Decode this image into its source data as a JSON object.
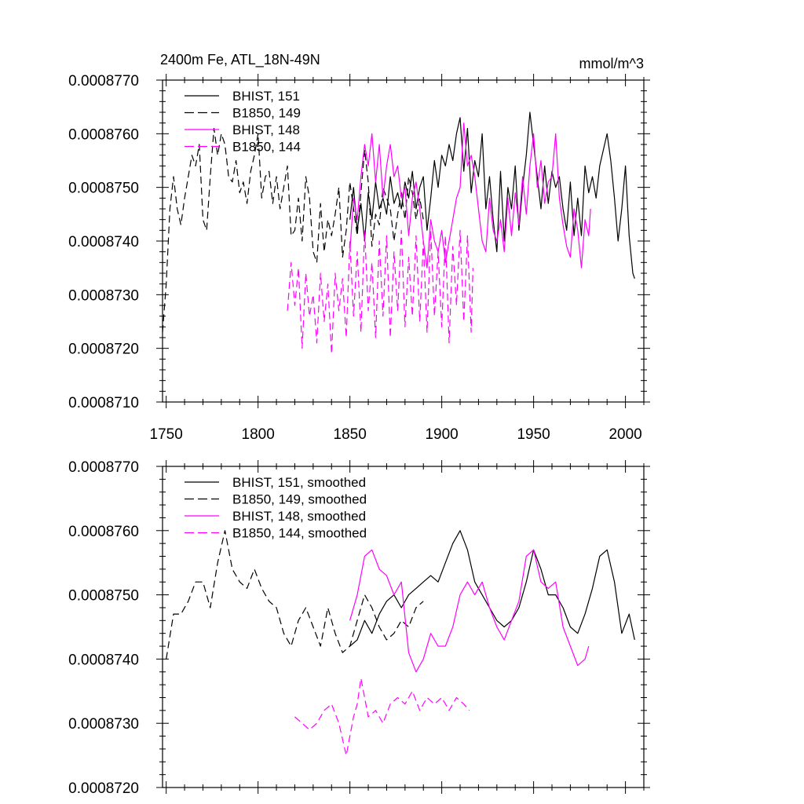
{
  "chart_data": [
    {
      "type": "line",
      "title_left": "2400m Fe, ATL_18N-49N",
      "title_right": "mmol/m^3",
      "xlim": [
        1748,
        2010
      ],
      "ylim": [
        0.000871,
        0.000877
      ],
      "xticks": [
        1750,
        1800,
        1850,
        1900,
        1950,
        2000
      ],
      "xticklabels": [
        "1750",
        "1800",
        "1850",
        "1900",
        "1950",
        "2000"
      ],
      "yticks": [
        0.000871,
        0.000872,
        0.000873,
        0.000874,
        0.000875,
        0.000876,
        0.000877
      ],
      "yticklabels": [
        "0.0008710",
        "0.0008720",
        "0.0008730",
        "0.0008740",
        "0.0008750",
        "0.0008760",
        "0.0008770"
      ],
      "grid": false,
      "legend_position": "top-left",
      "series": [
        {
          "name": "BHIST, 151",
          "color": "#000000",
          "dash": "solid",
          "x": [
            1850,
            1852,
            1854,
            1856,
            1858,
            1860,
            1862,
            1864,
            1866,
            1868,
            1870,
            1872,
            1874,
            1876,
            1878,
            1880,
            1882,
            1884,
            1886,
            1888,
            1890,
            1892,
            1894,
            1896,
            1898,
            1900,
            1902,
            1904,
            1906,
            1908,
            1910,
            1912,
            1914,
            1916,
            1918,
            1920,
            1922,
            1924,
            1926,
            1928,
            1930,
            1932,
            1934,
            1936,
            1938,
            1940,
            1942,
            1944,
            1946,
            1948,
            1950,
            1952,
            1954,
            1956,
            1958,
            1960,
            1962,
            1964,
            1966,
            1968,
            1970,
            1972,
            1974,
            1976,
            1978,
            1980,
            1982,
            1984,
            1986,
            1988,
            1990,
            1992,
            1994,
            1996,
            1998,
            2000,
            2002,
            2004,
            2005
          ],
          "y": [
            0.0008744,
            0.000875,
            0.0008742,
            0.0008747,
            0.000874,
            0.0008749,
            0.0008744,
            0.0008751,
            0.0008746,
            0.0008748,
            0.0008745,
            0.0008752,
            0.0008747,
            0.0008749,
            0.0008746,
            0.0008751,
            0.0008748,
            0.0008753,
            0.0008746,
            0.000875,
            0.0008752,
            0.0008742,
            0.0008748,
            0.0008755,
            0.000875,
            0.0008756,
            0.0008754,
            0.0008758,
            0.0008755,
            0.000876,
            0.0008763,
            0.0008753,
            0.0008761,
            0.0008749,
            0.0008755,
            0.0008752,
            0.000876,
            0.0008746,
            0.0008752,
            0.0008744,
            0.0008738,
            0.0008753,
            0.000874,
            0.000875,
            0.0008746,
            0.0008754,
            0.0008742,
            0.000875,
            0.0008756,
            0.0008764,
            0.0008758,
            0.0008752,
            0.0008746,
            0.0008754,
            0.0008747,
            0.0008753,
            0.000875,
            0.0008752,
            0.0008746,
            0.0008742,
            0.0008751,
            0.0008741,
            0.0008748,
            0.0008741,
            0.0008754,
            0.0008749,
            0.0008752,
            0.0008748,
            0.0008754,
            0.0008757,
            0.000876,
            0.0008755,
            0.0008748,
            0.000874,
            0.0008746,
            0.0008754,
            0.0008741,
            0.0008734,
            0.0008733
          ]
        },
        {
          "name": "B1850, 149",
          "color": "#000000",
          "dash": "dash",
          "x": [
            1748,
            1750,
            1752,
            1754,
            1756,
            1758,
            1760,
            1762,
            1764,
            1766,
            1768,
            1770,
            1772,
            1774,
            1776,
            1778,
            1780,
            1782,
            1784,
            1786,
            1788,
            1790,
            1792,
            1794,
            1796,
            1798,
            1800,
            1802,
            1804,
            1806,
            1808,
            1810,
            1812,
            1814,
            1816,
            1818,
            1820,
            1822,
            1824,
            1826,
            1828,
            1830,
            1832,
            1834,
            1836,
            1838,
            1840,
            1842,
            1844,
            1846,
            1848,
            1850,
            1852,
            1854,
            1856,
            1858,
            1860,
            1862,
            1864,
            1866,
            1868,
            1870,
            1872,
            1874,
            1876,
            1878,
            1880,
            1882,
            1884,
            1886,
            1888,
            1890
          ],
          "y": [
            0.0008723,
            0.0008732,
            0.0008746,
            0.0008752,
            0.0008746,
            0.0008743,
            0.0008748,
            0.0008752,
            0.0008756,
            0.0008754,
            0.0008758,
            0.0008744,
            0.0008742,
            0.0008752,
            0.0008761,
            0.0008756,
            0.000876,
            0.0008758,
            0.0008752,
            0.0008751,
            0.0008755,
            0.0008749,
            0.0008751,
            0.0008747,
            0.0008753,
            0.0008756,
            0.000876,
            0.0008748,
            0.0008752,
            0.0008753,
            0.0008747,
            0.0008752,
            0.0008746,
            0.000875,
            0.0008754,
            0.0008741,
            0.0008742,
            0.0008748,
            0.000874,
            0.0008752,
            0.0008748,
            0.0008738,
            0.0008736,
            0.0008747,
            0.0008738,
            0.0008744,
            0.0008741,
            0.0008745,
            0.000875,
            0.0008737,
            0.0008742,
            0.0008751,
            0.0008746,
            0.0008741,
            0.0008749,
            0.0008757,
            0.0008751,
            0.0008739,
            0.0008745,
            0.0008743,
            0.000875,
            0.0008748,
            0.0008746,
            0.000874,
            0.0008745,
            0.0008749,
            0.0008744,
            0.0008752,
            0.0008749,
            0.0008744,
            0.0008748,
            0.0008744
          ]
        },
        {
          "name": "BHIST, 148",
          "color": "#ff00ff",
          "dash": "solid",
          "x": [
            1850,
            1852,
            1854,
            1856,
            1858,
            1860,
            1862,
            1864,
            1866,
            1868,
            1870,
            1872,
            1874,
            1876,
            1878,
            1880,
            1882,
            1884,
            1886,
            1888,
            1890,
            1892,
            1894,
            1896,
            1898,
            1900,
            1902,
            1904,
            1906,
            1908,
            1910,
            1912,
            1914,
            1916,
            1918,
            1920,
            1922,
            1924,
            1926,
            1928,
            1930,
            1932,
            1934,
            1936,
            1938,
            1940,
            1942,
            1944,
            1946,
            1948,
            1950,
            1952,
            1954,
            1956,
            1958,
            1960,
            1962,
            1964,
            1966,
            1968,
            1970,
            1972,
            1974,
            1976,
            1978,
            1980,
            1981
          ],
          "y": [
            0.0008738,
            0.0008748,
            0.0008744,
            0.0008752,
            0.0008758,
            0.0008754,
            0.000876,
            0.0008751,
            0.0008758,
            0.0008748,
            0.0008754,
            0.0008758,
            0.0008752,
            0.0008754,
            0.0008748,
            0.000875,
            0.0008741,
            0.0008748,
            0.0008751,
            0.0008746,
            0.000874,
            0.0008735,
            0.0008744,
            0.000874,
            0.0008738,
            0.0008742,
            0.0008736,
            0.000874,
            0.0008744,
            0.0008748,
            0.000875,
            0.0008762,
            0.0008754,
            0.0008756,
            0.0008752,
            0.0008746,
            0.000874,
            0.0008738,
            0.0008748,
            0.0008742,
            0.000874,
            0.0008744,
            0.0008738,
            0.0008748,
            0.0008741,
            0.0008749,
            0.0008743,
            0.0008752,
            0.0008745,
            0.0008754,
            0.000876,
            0.000875,
            0.0008755,
            0.0008747,
            0.0008751,
            0.0008752,
            0.000876,
            0.0008748,
            0.0008743,
            0.0008739,
            0.0008737,
            0.0008746,
            0.0008742,
            0.0008735,
            0.0008744,
            0.0008741,
            0.0008746
          ]
        },
        {
          "name": "B1850, 144",
          "color": "#ff00ff",
          "dash": "dash",
          "x": [
            1816,
            1818,
            1820,
            1822,
            1824,
            1826,
            1828,
            1830,
            1832,
            1834,
            1836,
            1838,
            1840,
            1842,
            1844,
            1846,
            1848,
            1850,
            1852,
            1854,
            1856,
            1858,
            1860,
            1862,
            1864,
            1866,
            1868,
            1870,
            1872,
            1874,
            1876,
            1878,
            1880,
            1882,
            1884,
            1886,
            1888,
            1890,
            1892,
            1894,
            1896,
            1898,
            1900,
            1902,
            1904,
            1906,
            1908,
            1910,
            1912,
            1914,
            1916,
            1917
          ],
          "y": [
            0.0008727,
            0.0008736,
            0.0008728,
            0.0008735,
            0.000872,
            0.0008734,
            0.0008726,
            0.000873,
            0.0008721,
            0.0008734,
            0.0008725,
            0.0008732,
            0.0008719,
            0.0008734,
            0.0008727,
            0.0008733,
            0.0008722,
            0.000874,
            0.0008726,
            0.0008738,
            0.0008723,
            0.0008742,
            0.0008727,
            0.0008736,
            0.0008722,
            0.000874,
            0.0008726,
            0.0008741,
            0.0008722,
            0.0008738,
            0.0008727,
            0.0008742,
            0.0008724,
            0.0008737,
            0.0008726,
            0.0008741,
            0.0008725,
            0.000874,
            0.0008723,
            0.0008742,
            0.0008726,
            0.0008738,
            0.0008724,
            0.0008741,
            0.0008721,
            0.0008739,
            0.0008728,
            0.0008742,
            0.0008725,
            0.0008741,
            0.0008723,
            0.0008735
          ]
        }
      ]
    },
    {
      "type": "line",
      "xlim": [
        1748,
        2010
      ],
      "ylim": [
        0.000872,
        0.000877
      ],
      "xticks": [
        1750,
        1800,
        1850,
        1900,
        1950,
        2000
      ],
      "yticks": [
        0.000872,
        0.000873,
        0.000874,
        0.000875,
        0.000876,
        0.000877
      ],
      "yticklabels": [
        "0.0008720",
        "0.0008730",
        "0.0008740",
        "0.0008750",
        "0.0008760",
        "0.0008770"
      ],
      "grid": false,
      "legend_position": "top-left",
      "series": [
        {
          "name": "BHIST, 151, smoothed",
          "color": "#000000",
          "dash": "solid",
          "x": [
            1850,
            1854,
            1858,
            1862,
            1866,
            1870,
            1874,
            1878,
            1882,
            1886,
            1890,
            1894,
            1898,
            1902,
            1906,
            1910,
            1914,
            1918,
            1922,
            1926,
            1930,
            1934,
            1938,
            1942,
            1946,
            1950,
            1954,
            1958,
            1962,
            1966,
            1970,
            1974,
            1978,
            1982,
            1986,
            1990,
            1994,
            1998,
            2002,
            2005
          ],
          "y": [
            0.0008742,
            0.0008743,
            0.0008746,
            0.0008744,
            0.0008747,
            0.0008749,
            0.000875,
            0.0008748,
            0.000875,
            0.0008751,
            0.0008752,
            0.0008753,
            0.0008752,
            0.0008755,
            0.0008758,
            0.000876,
            0.0008757,
            0.0008752,
            0.000875,
            0.0008748,
            0.0008746,
            0.0008745,
            0.0008746,
            0.0008748,
            0.0008752,
            0.0008757,
            0.0008754,
            0.000875,
            0.000875,
            0.0008748,
            0.0008745,
            0.0008744,
            0.0008747,
            0.0008751,
            0.0008756,
            0.0008757,
            0.0008752,
            0.0008744,
            0.0008747,
            0.0008743
          ]
        },
        {
          "name": "B1850, 149, smoothed",
          "color": "#000000",
          "dash": "dash",
          "x": [
            1750,
            1754,
            1758,
            1762,
            1766,
            1770,
            1774,
            1778,
            1782,
            1786,
            1790,
            1794,
            1798,
            1802,
            1806,
            1810,
            1814,
            1818,
            1822,
            1826,
            1830,
            1834,
            1838,
            1842,
            1846,
            1850,
            1854,
            1858,
            1862,
            1866,
            1870,
            1874,
            1878,
            1882,
            1886,
            1890
          ],
          "y": [
            0.000874,
            0.0008747,
            0.0008747,
            0.0008749,
            0.0008752,
            0.0008752,
            0.0008748,
            0.0008755,
            0.000876,
            0.0008754,
            0.0008752,
            0.0008751,
            0.0008754,
            0.0008751,
            0.0008749,
            0.0008748,
            0.0008744,
            0.0008742,
            0.0008746,
            0.0008748,
            0.0008745,
            0.0008742,
            0.0008748,
            0.0008744,
            0.0008741,
            0.0008742,
            0.0008746,
            0.000875,
            0.0008748,
            0.0008745,
            0.0008743,
            0.0008744,
            0.0008746,
            0.0008745,
            0.0008748,
            0.0008749
          ]
        },
        {
          "name": "BHIST, 148, smoothed",
          "color": "#ff00ff",
          "dash": "solid",
          "x": [
            1850,
            1854,
            1858,
            1862,
            1866,
            1870,
            1874,
            1878,
            1882,
            1886,
            1890,
            1894,
            1898,
            1902,
            1906,
            1910,
            1914,
            1918,
            1922,
            1926,
            1930,
            1934,
            1938,
            1942,
            1946,
            1950,
            1954,
            1958,
            1962,
            1966,
            1970,
            1974,
            1978,
            1980
          ],
          "y": [
            0.0008746,
            0.000875,
            0.0008756,
            0.0008757,
            0.0008754,
            0.0008753,
            0.000875,
            0.0008752,
            0.0008741,
            0.0008738,
            0.000874,
            0.0008744,
            0.0008742,
            0.0008742,
            0.0008745,
            0.000875,
            0.0008752,
            0.000875,
            0.0008752,
            0.0008748,
            0.0008745,
            0.0008743,
            0.0008746,
            0.0008749,
            0.0008756,
            0.0008757,
            0.0008752,
            0.0008751,
            0.0008752,
            0.0008745,
            0.0008742,
            0.0008739,
            0.000874,
            0.0008742
          ]
        },
        {
          "name": "B1850, 144, smoothed",
          "color": "#ff00ff",
          "dash": "dash",
          "x": [
            1820,
            1824,
            1828,
            1832,
            1836,
            1840,
            1844,
            1848,
            1850,
            1852,
            1854,
            1856,
            1858,
            1860,
            1864,
            1868,
            1872,
            1876,
            1880,
            1884,
            1888,
            1892,
            1896,
            1900,
            1904,
            1908,
            1912,
            1915
          ],
          "y": [
            0.0008731,
            0.000873,
            0.0008729,
            0.000873,
            0.0008732,
            0.0008733,
            0.000873,
            0.0008725,
            0.0008728,
            0.0008731,
            0.0008733,
            0.0008737,
            0.0008734,
            0.0008731,
            0.0008732,
            0.000873,
            0.0008733,
            0.0008734,
            0.0008733,
            0.0008735,
            0.0008732,
            0.0008734,
            0.0008733,
            0.0008734,
            0.0008732,
            0.0008734,
            0.0008733,
            0.0008732
          ]
        }
      ]
    }
  ]
}
